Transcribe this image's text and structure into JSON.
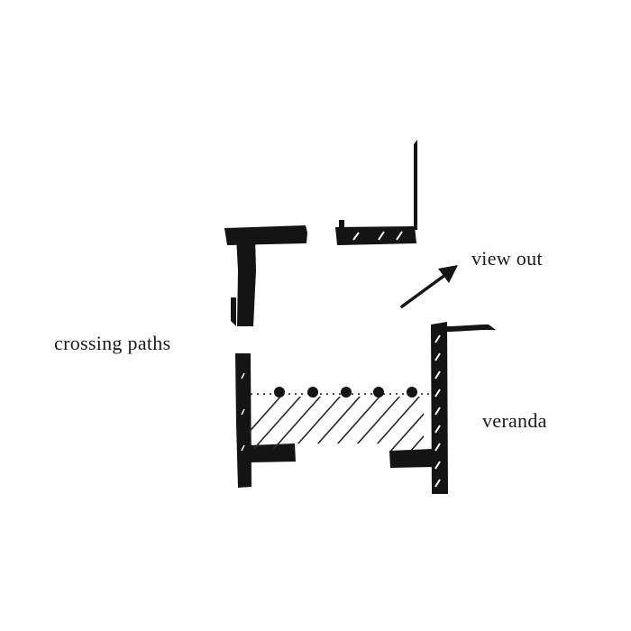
{
  "labels": {
    "view_out": "view out",
    "crossing_paths": "crossing paths",
    "veranda": "veranda"
  },
  "colors": {
    "ink": "#141414",
    "background": "#ffffff",
    "hatch": "#2a2a2a"
  }
}
